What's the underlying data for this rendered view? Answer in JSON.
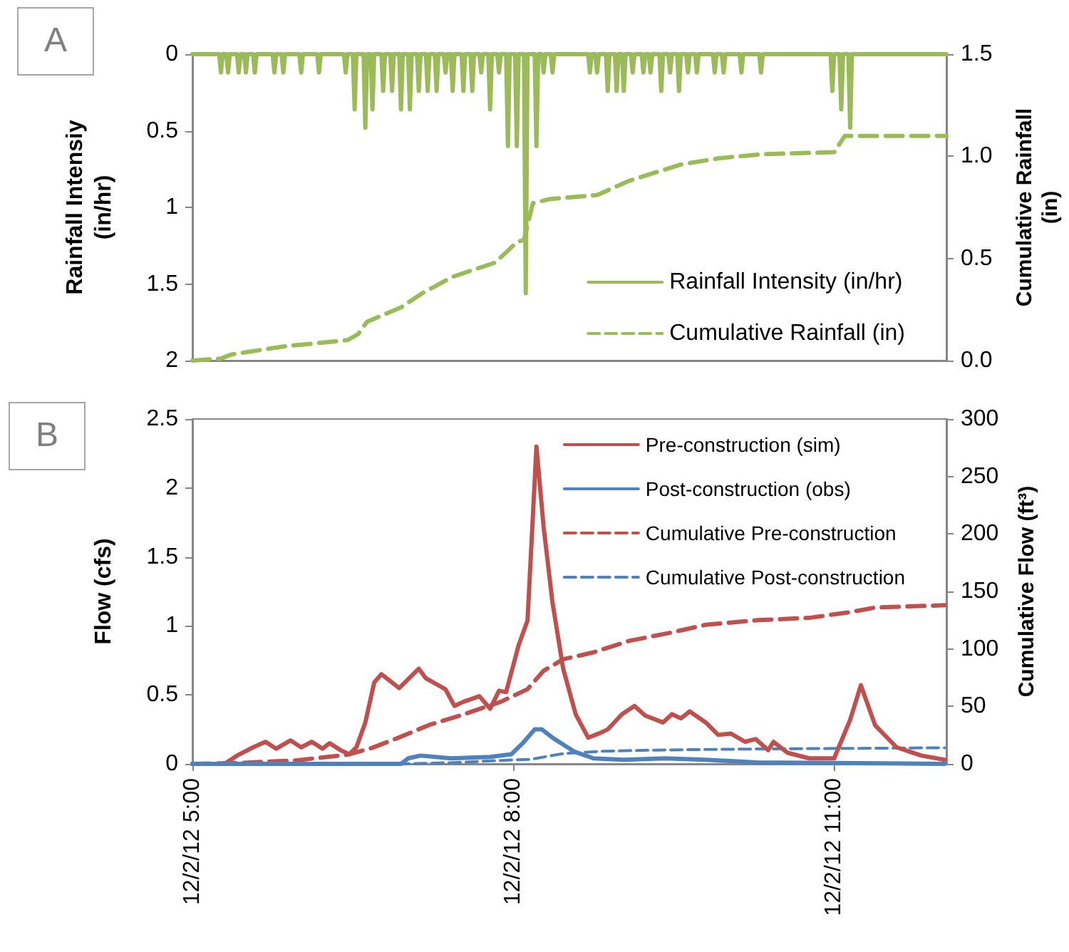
{
  "chart_data": [
    {
      "type": "line",
      "annotations": [
        "A"
      ],
      "ylabel": "Rainfall Intensiy (in/hr)",
      "y2label": "Cumulative Rainfall (in)",
      "xlim": [
        "--12-02T05:00",
        "--12-02T12:03"
      ],
      "ylim": [
        2,
        0
      ],
      "yticks": [
        0,
        0.5,
        1,
        1.5,
        2
      ],
      "y2lim": [
        0,
        1.5
      ],
      "y2ticks": [
        {
          "value": 0,
          "label": "0.0"
        },
        {
          "value": 0.5,
          "label": "0.5"
        },
        {
          "value": 1,
          "label": "1.0"
        },
        {
          "value": 1.5,
          "label": "1.5"
        }
      ],
      "tick_labels": "y",
      "grid": false,
      "legend": "bottom right",
      "marker": "none",
      "series": [
        {
          "name": "Rainfall Intensity (in/hr)",
          "color": "#9bbb59",
          "line_style": "solid",
          "x": [
            "--12-02T05:00",
            "--12-02T05:15",
            "--12-02T05:16",
            "--12-02T05:17",
            "--12-02T05:19",
            "--12-02T05:20",
            "--12-02T05:21",
            "--12-02T05:25",
            "--12-02T05:26",
            "--12-02T05:27",
            "--12-02T05:29",
            "--12-02T05:30",
            "--12-02T05:31",
            "--12-02T05:34",
            "--12-02T05:35",
            "--12-02T05:36",
            "--12-02T05:45",
            "--12-02T05:46",
            "--12-02T05:47",
            "--12-02T05:50",
            "--12-02T05:51",
            "--12-02T05:52",
            "--12-02T06:00",
            "--12-02T06:01",
            "--12-02T06:02",
            "--12-02T06:10",
            "--12-02T06:11",
            "--12-02T06:12",
            "--12-02T06:25",
            "--12-02T06:26",
            "--12-02T06:27",
            "--12-02T06:30",
            "--12-02T06:31",
            "--12-02T06:32",
            "--12-02T06:36",
            "--12-02T06:37",
            "--12-02T06:38",
            "--12-02T06:40",
            "--12-02T06:41",
            "--12-02T06:42",
            "--12-02T06:46",
            "--12-02T06:47",
            "--12-02T06:48",
            "--12-02T06:51",
            "--12-02T06:52",
            "--12-02T06:53",
            "--12-02T06:56",
            "--12-02T06:57",
            "--12-02T06:58",
            "--12-02T07:01",
            "--12-02T07:02",
            "--12-02T07:03",
            "--12-02T07:06",
            "--12-02T07:07",
            "--12-02T07:08",
            "--12-02T07:11",
            "--12-02T07:12",
            "--12-02T07:13",
            "--12-02T07:16",
            "--12-02T07:17",
            "--12-02T07:18",
            "--12-02T07:21",
            "--12-02T07:22",
            "--12-02T07:23",
            "--12-02T07:25",
            "--12-02T07:26",
            "--12-02T07:27",
            "--12-02T07:31",
            "--12-02T07:32",
            "--12-02T07:33",
            "--12-02T07:36",
            "--12-02T07:37",
            "--12-02T07:38",
            "--12-02T07:41",
            "--12-02T07:42",
            "--12-02T07:43",
            "--12-02T07:46",
            "--12-02T07:47",
            "--12-02T07:48",
            "--12-02T07:51",
            "--12-02T07:52",
            "--12-02T07:53",
            "--12-02T07:56",
            "--12-02T07:57",
            "--12-02T07:58",
            "--12-02T08:01",
            "--12-02T08:02",
            "--12-02T08:03",
            "--12-02T08:06",
            "--12-02T08:07",
            "--12-02T08:08",
            "--12-02T08:12",
            "--12-02T08:13",
            "--12-02T08:14",
            "--12-02T08:16",
            "--12-02T08:17",
            "--12-02T08:18",
            "--12-02T08:21",
            "--12-02T08:22",
            "--12-02T08:23",
            "--12-02T08:42",
            "--12-02T08:43",
            "--12-02T08:44",
            "--12-02T08:46",
            "--12-02T08:47",
            "--12-02T08:48",
            "--12-02T08:52",
            "--12-02T08:53",
            "--12-02T08:54",
            "--12-02T08:57",
            "--12-02T08:58",
            "--12-02T08:59",
            "--12-02T09:01",
            "--12-02T09:02",
            "--12-02T09:03",
            "--12-02T09:06",
            "--12-02T09:07",
            "--12-02T09:08",
            "--12-02T09:12",
            "--12-02T09:13",
            "--12-02T09:14",
            "--12-02T09:16",
            "--12-02T09:17",
            "--12-02T09:18",
            "--12-02T09:22",
            "--12-02T09:23",
            "--12-02T09:24",
            "--12-02T09:27",
            "--12-02T09:28",
            "--12-02T09:29",
            "--12-02T09:32",
            "--12-02T09:33",
            "--12-02T09:34",
            "--12-02T09:37",
            "--12-02T09:38",
            "--12-02T09:39",
            "--12-02T09:42",
            "--12-02T09:43",
            "--12-02T09:44",
            "--12-02T09:52",
            "--12-02T09:53",
            "--12-02T09:54",
            "--12-02T09:57",
            "--12-02T09:58",
            "--12-02T09:59",
            "--12-02T10:07",
            "--12-02T10:08",
            "--12-02T10:09",
            "--12-02T10:18",
            "--12-02T10:19",
            "--12-02T10:20",
            "--12-02T10:58",
            "--12-02T10:59",
            "--12-02T11:00",
            "--12-02T11:03",
            "--12-02T11:04",
            "--12-02T11:05",
            "--12-02T11:08",
            "--12-02T11:09",
            "--12-02T11:10",
            "--12-02T12:03"
          ],
          "values": [
            0,
            0,
            0.12,
            0,
            0,
            0.12,
            0,
            0,
            0.12,
            0,
            0,
            0.12,
            0,
            0,
            0.12,
            0,
            0,
            0.12,
            0,
            0,
            0.12,
            0,
            0,
            0.12,
            0,
            0,
            0.12,
            0,
            0,
            0.12,
            0,
            0,
            0.36,
            0,
            0,
            0.48,
            0,
            0,
            0.36,
            0,
            0,
            0.24,
            0,
            0,
            0.24,
            0,
            0,
            0.36,
            0,
            0,
            0.36,
            0,
            0,
            0.24,
            0,
            0,
            0.24,
            0,
            0,
            0.24,
            0,
            0,
            0.12,
            0,
            0,
            0.24,
            0,
            0,
            0.24,
            0,
            0,
            0.24,
            0,
            0,
            0.12,
            0,
            0,
            0.36,
            0,
            0,
            0.12,
            0,
            0,
            0.6,
            0,
            0,
            0.6,
            0,
            0,
            1.56,
            0,
            0,
            0.6,
            0,
            0,
            0.12,
            0,
            0,
            0.12,
            0,
            0,
            0.12,
            0,
            0,
            0.12,
            0,
            0,
            0.24,
            0,
            0,
            0.24,
            0,
            0,
            0.24,
            0,
            0,
            0.12,
            0,
            0,
            0.12,
            0,
            0,
            0.12,
            0,
            0,
            0.24,
            0,
            0,
            0.12,
            0,
            0,
            0.24,
            0,
            0,
            0.12,
            0,
            0,
            0.12,
            0,
            0,
            0.12,
            0,
            0,
            0.12,
            0,
            0,
            0.12,
            0,
            0,
            0.12,
            0,
            0,
            0.24,
            0,
            0,
            0.36,
            0,
            0,
            0.48,
            0,
            0
          ]
        },
        {
          "name": "Cumulative Rainfall (in)",
          "color": "#9bbb59",
          "line_style": "dashed",
          "axis": "y2",
          "x": [
            "--12-02T05:00",
            "--12-02T05:16",
            "--12-02T05:22",
            "--12-02T05:52",
            "--12-02T06:27",
            "--12-02T06:33",
            "--12-02T06:38",
            "--12-02T06:57",
            "--12-02T07:09",
            "--12-02T07:26",
            "--12-02T07:50",
            "--12-02T08:02",
            "--12-02T08:06",
            "--12-02T08:11",
            "--12-02T08:20",
            "--12-02T08:47",
            "--12-02T09:05",
            "--12-02T09:34",
            "--12-02T09:55",
            "--12-02T10:19",
            "--12-02T11:00",
            "--12-02T11:06",
            "--12-02T12:03"
          ],
          "values": [
            0,
            0.01,
            0.03,
            0.07,
            0.1,
            0.13,
            0.19,
            0.26,
            0.33,
            0.41,
            0.48,
            0.58,
            0.59,
            0.77,
            0.79,
            0.81,
            0.88,
            0.96,
            0.99,
            1.01,
            1.02,
            1.1,
            1.1
          ]
        }
      ]
    },
    {
      "type": "line",
      "annotations": [
        "B"
      ],
      "ylabel": "Flow (cfs)",
      "y2label": "Cumulative Flow (ft³)",
      "xlim": [
        "--12-02T05:00",
        "--12-02T12:03"
      ],
      "xticks": [
        {
          "value": "--12-02T05:00",
          "label": "12/2/12 5:00"
        },
        {
          "value": "--12-02T08:00",
          "label": "12/2/12 8:00"
        },
        {
          "value": "--12-02T11:00",
          "label": "12/2/12 11:00"
        }
      ],
      "ylim": [
        0,
        2.5
      ],
      "yticks": [
        0,
        0.5,
        1,
        1.5,
        2,
        2.5
      ],
      "y2lim": [
        0,
        300
      ],
      "y2ticks": [
        0,
        50,
        100,
        150,
        200,
        250,
        300
      ],
      "grid": false,
      "legend": "top right",
      "marker": "none",
      "series": [
        {
          "name": "Pre-construction (sim)",
          "color": "#c0504d",
          "line_style": "solid",
          "x": [
            "--12-02T05:00",
            "--12-02T05:18",
            "--12-02T05:25",
            "--12-02T05:34",
            "--12-02T05:41",
            "--12-02T05:47",
            "--12-02T05:55",
            "--12-02T06:01",
            "--12-02T06:07",
            "--12-02T06:13",
            "--12-02T06:17",
            "--12-02T06:23",
            "--12-02T06:28",
            "--12-02T06:32",
            "--12-02T06:37",
            "--12-02T06:42",
            "--12-02T06:46",
            "--12-02T06:56",
            "--12-02T07:07",
            "--12-02T07:11",
            "--12-02T07:22",
            "--12-02T07:27",
            "--12-02T07:32",
            "--12-02T07:41",
            "--12-02T07:47",
            "--12-02T07:52",
            "--12-02T07:56",
            "--12-02T08:03",
            "--12-02T08:08",
            "--12-02T08:13",
            "--12-02T08:17",
            "--12-02T08:22",
            "--12-02T08:28",
            "--12-02T08:35",
            "--12-02T08:42",
            "--12-02T08:48",
            "--12-02T08:53",
            "--12-02T09:01",
            "--12-02T09:08",
            "--12-02T09:14",
            "--12-02T09:24",
            "--12-02T09:29",
            "--12-02T09:34",
            "--12-02T09:39",
            "--12-02T09:48",
            "--12-02T09:55",
            "--12-02T10:02",
            "--12-02T10:10",
            "--12-02T10:16",
            "--12-02T10:23",
            "--12-02T10:26",
            "--12-02T10:34",
            "--12-02T10:46",
            "--12-02T11:00",
            "--12-02T11:09",
            "--12-02T11:15",
            "--12-02T11:23",
            "--12-02T11:35",
            "--12-02T11:49",
            "--12-02T12:02"
          ],
          "values": [
            0,
            0,
            0.06,
            0.12,
            0.16,
            0.11,
            0.17,
            0.12,
            0.16,
            0.11,
            0.15,
            0.1,
            0.07,
            0.12,
            0.3,
            0.59,
            0.65,
            0.55,
            0.69,
            0.62,
            0.54,
            0.42,
            0.45,
            0.49,
            0.4,
            0.53,
            0.52,
            0.86,
            1.04,
            2.3,
            1.72,
            1.17,
            0.69,
            0.36,
            0.19,
            0.22,
            0.25,
            0.36,
            0.42,
            0.35,
            0.3,
            0.36,
            0.33,
            0.38,
            0.3,
            0.21,
            0.22,
            0.16,
            0.18,
            0.1,
            0.16,
            0.08,
            0.04,
            0.04,
            0.32,
            0.57,
            0.28,
            0.12,
            0.06,
            0.03
          ]
        },
        {
          "name": "Post-construction (obs)",
          "color": "#4f81bd",
          "line_style": "solid",
          "x": [
            "--12-02T05:00",
            "--12-02T06:57",
            "--12-02T07:01",
            "--12-02T07:08",
            "--12-02T07:25",
            "--12-02T07:47",
            "--12-02T07:59",
            "--12-02T08:06",
            "--12-02T08:12",
            "--12-02T08:16",
            "--12-02T08:22",
            "--12-02T08:34",
            "--12-02T08:45",
            "--12-02T09:02",
            "--12-02T09:25",
            "--12-02T09:48",
            "--12-02T10:17",
            "--12-02T12:02"
          ],
          "values": [
            0,
            0,
            0.04,
            0.06,
            0.04,
            0.05,
            0.07,
            0.16,
            0.25,
            0.25,
            0.19,
            0.09,
            0.04,
            0.03,
            0.04,
            0.03,
            0.01,
            0
          ]
        },
        {
          "name": "Cumulative Pre-construction",
          "color": "#c0504d",
          "line_style": "dashed",
          "axis": "y2",
          "x": [
            "--12-02T05:00",
            "--12-02T05:29",
            "--12-02T05:58",
            "--12-02T06:27",
            "--12-02T06:41",
            "--12-02T06:56",
            "--12-02T07:13",
            "--12-02T07:30",
            "--12-02T07:53",
            "--12-02T08:08",
            "--12-02T08:17",
            "--12-02T08:28",
            "--12-02T08:45",
            "--12-02T09:05",
            "--12-02T09:28",
            "--12-02T09:48",
            "--12-02T10:17",
            "--12-02T10:46",
            "--12-02T11:09",
            "--12-02T11:23",
            "--12-02T12:02"
          ],
          "values": [
            0,
            1,
            3,
            8,
            14,
            23,
            34,
            42,
            54,
            65,
            81,
            91,
            97,
            107,
            114,
            121,
            125,
            127,
            132,
            136,
            138
          ]
        },
        {
          "name": "Cumulative Post-construction",
          "color": "#4f81bd",
          "line_style": "dashed",
          "axis": "y2",
          "x": [
            "--12-02T05:00",
            "--12-02T06:56",
            "--12-02T07:25",
            "--12-02T07:53",
            "--12-02T08:10",
            "--12-02T08:28",
            "--12-02T08:50",
            "--12-02T09:19",
            "--12-02T10:17",
            "--12-02T12:02"
          ],
          "values": [
            0,
            0,
            1,
            3,
            4,
            9,
            11,
            12,
            13,
            14
          ]
        }
      ]
    }
  ]
}
